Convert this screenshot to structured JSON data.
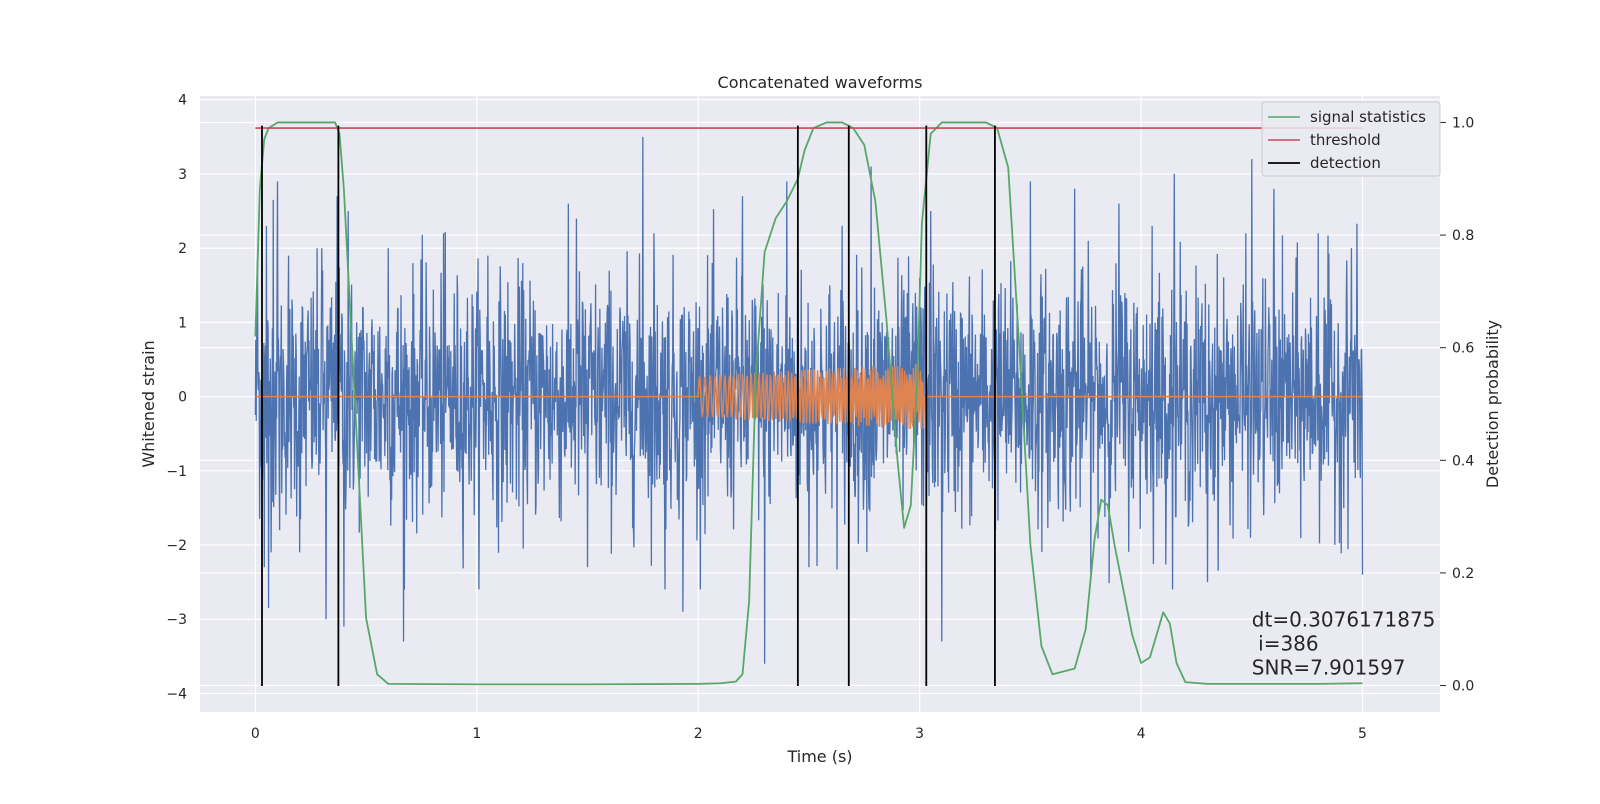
{
  "chart_data": {
    "type": "line",
    "title": "Concatenated waveforms",
    "xlabel": "Time (s)",
    "ylabel": "Whitened strain",
    "y2label": "Detection probability",
    "xlim": [
      -0.25,
      5.35
    ],
    "ylim": [
      -4.25,
      4.05
    ],
    "y2lim": [
      -0.047,
      1.047
    ],
    "xticks": [
      0,
      1,
      2,
      3,
      4,
      5
    ],
    "yticks": [
      -4,
      -3,
      -2,
      -1,
      0,
      1,
      2,
      3,
      4
    ],
    "y2ticks": [
      0.0,
      0.2,
      0.4,
      0.6,
      0.8,
      1.0
    ],
    "grid": true,
    "legend_position": "top-right",
    "colors": {
      "strain": "#4c72b0",
      "injected": "#dd8452",
      "statistics": "#55a868",
      "threshold": "#c44e52",
      "detection": "#000000",
      "background": "#eaeaf2"
    },
    "series": [
      {
        "name": "",
        "axis": "left",
        "kind": "noise",
        "x_range": [
          0,
          5
        ],
        "std": 0.8,
        "peak_values": [
          [
            0.01,
            1.85
          ],
          [
            0.05,
            2.3
          ],
          [
            0.04,
            -2.3
          ],
          [
            0.06,
            -2.85
          ],
          [
            0.08,
            2.65
          ],
          [
            0.1,
            2.9
          ],
          [
            0.11,
            -1.8
          ],
          [
            0.15,
            1.9
          ],
          [
            0.2,
            -2.1
          ],
          [
            0.3,
            2.0
          ],
          [
            0.32,
            -3.0
          ],
          [
            0.37,
            2.7
          ],
          [
            0.4,
            -3.1
          ],
          [
            0.42,
            2.5
          ],
          [
            0.6,
            2.0
          ],
          [
            0.67,
            -3.3
          ],
          [
            0.85,
            2.2
          ],
          [
            1.05,
            1.9
          ],
          [
            1.45,
            2.4
          ],
          [
            1.5,
            -2.3
          ],
          [
            1.75,
            3.5
          ],
          [
            1.8,
            2.2
          ],
          [
            1.85,
            -2.6
          ],
          [
            1.93,
            -2.9
          ],
          [
            2.2,
            2.7
          ],
          [
            2.3,
            -3.6
          ],
          [
            2.4,
            2.9
          ],
          [
            2.45,
            2.7
          ],
          [
            2.5,
            -2.3
          ],
          [
            2.65,
            2.3
          ],
          [
            2.78,
            3.1
          ],
          [
            3.05,
            2.5
          ],
          [
            3.1,
            -3.3
          ],
          [
            3.5,
            2.9
          ],
          [
            3.7,
            2.8
          ],
          [
            3.9,
            2.6
          ],
          [
            4.05,
            2.3
          ],
          [
            4.15,
            3.0
          ],
          [
            4.3,
            -2.5
          ],
          [
            4.5,
            3.2
          ],
          [
            4.6,
            2.8
          ],
          [
            4.8,
            2.2
          ],
          [
            4.95,
            2.0
          ],
          [
            5.0,
            -2.4
          ],
          [
            3.0,
            1.6
          ]
        ]
      },
      {
        "name": "",
        "axis": "left",
        "kind": "chirp",
        "x": [
          0,
          2,
          3.02,
          5
        ],
        "amplitude_start": 0.28,
        "amplitude_end": 0.45,
        "active_range": [
          2.0,
          3.02
        ]
      },
      {
        "name": "signal statistics",
        "axis": "right",
        "x": [
          0.0,
          0.02,
          0.04,
          0.06,
          0.1,
          0.2,
          0.36,
          0.38,
          0.4,
          0.45,
          0.5,
          0.55,
          0.6,
          1.0,
          1.5,
          2.0,
          2.1,
          2.17,
          2.2,
          2.23,
          2.26,
          2.3,
          2.35,
          2.4,
          2.45,
          2.48,
          2.52,
          2.58,
          2.65,
          2.7,
          2.75,
          2.8,
          2.85,
          2.9,
          2.93,
          2.96,
          2.99,
          3.01,
          3.05,
          3.1,
          3.2,
          3.3,
          3.35,
          3.4,
          3.45,
          3.5,
          3.55,
          3.6,
          3.7,
          3.75,
          3.79,
          3.82,
          3.85,
          3.88,
          3.92,
          3.96,
          4.0,
          4.04,
          4.07,
          4.1,
          4.13,
          4.16,
          4.2,
          4.3,
          4.5,
          4.8,
          5.0
        ],
        "values": [
          0.62,
          0.88,
          0.97,
          0.99,
          1.0,
          1.0,
          1.0,
          0.98,
          0.88,
          0.5,
          0.12,
          0.02,
          0.003,
          0.002,
          0.002,
          0.003,
          0.004,
          0.007,
          0.02,
          0.15,
          0.55,
          0.77,
          0.83,
          0.86,
          0.9,
          0.95,
          0.99,
          1.0,
          1.0,
          0.99,
          0.96,
          0.86,
          0.65,
          0.4,
          0.28,
          0.32,
          0.55,
          0.82,
          0.98,
          1.0,
          1.0,
          1.0,
          0.99,
          0.92,
          0.6,
          0.25,
          0.07,
          0.02,
          0.03,
          0.1,
          0.26,
          0.33,
          0.32,
          0.25,
          0.17,
          0.09,
          0.04,
          0.05,
          0.09,
          0.13,
          0.11,
          0.04,
          0.006,
          0.003,
          0.003,
          0.003,
          0.004
        ]
      },
      {
        "name": "threshold",
        "axis": "right",
        "x": [
          0,
          5
        ],
        "values": [
          0.99,
          0.99
        ]
      },
      {
        "name": "detection",
        "axis": "left",
        "x_lines": [
          0.03,
          0.375,
          2.45,
          2.68,
          3.03,
          3.34
        ],
        "y_range": [
          -3.9,
          3.65
        ]
      }
    ],
    "annotations": [
      {
        "text": "dt=0.3076171875",
        "x": 4.5,
        "y": 0.105
      },
      {
        "text": " i=386",
        "x": 4.5,
        "y": 0.062
      },
      {
        "text": "SNR=7.901597",
        "x": 4.5,
        "y": 0.02
      }
    ]
  }
}
